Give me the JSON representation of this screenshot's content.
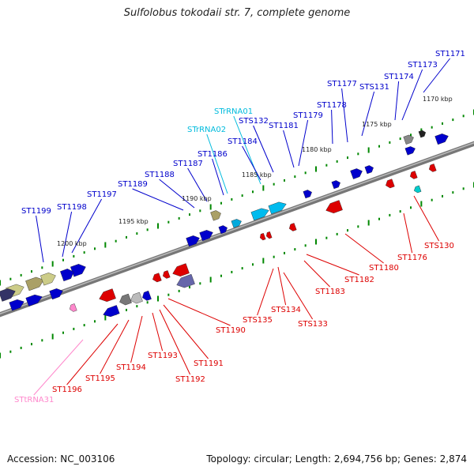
{
  "title": "Sulfolobus tokodaii str. 7, complete genome",
  "footer": {
    "accession": "Accession: NC_003106",
    "topology": "Topology: circular; Length: 2,694,756 bp; Genes: 2,874"
  },
  "colors": {
    "forward_gene": "#0000cc",
    "forward_rna": "#00bbdd",
    "reverse_gene": "#dd0000",
    "reverse_rna": "#ff88cc",
    "backbone": "#888888",
    "tick": "#008800"
  },
  "scale_labels": [
    "1170 kbp",
    "1175 kbp",
    "1180 kbp",
    "1185 kbp",
    "1190 kbp",
    "1195 kbp",
    "1200 kbp"
  ],
  "forward_labels": [
    "ST1171",
    "ST1173",
    "ST1174",
    "STS131",
    "ST1177",
    "ST1178",
    "ST1179",
    "ST1181",
    "STS132",
    "STrRNA01",
    "STrRNA02",
    "ST1184",
    "ST1186",
    "ST1187",
    "ST1188",
    "ST1189",
    "ST1197",
    "ST1198",
    "ST1199"
  ],
  "reverse_labels": [
    "STS130",
    "ST1176",
    "ST1180",
    "ST1182",
    "ST1183",
    "STS133",
    "STS134",
    "STS135",
    "ST1190",
    "ST1191",
    "ST1192",
    "ST1193",
    "ST1194",
    "ST1195",
    "ST1196",
    "STtRNA31"
  ]
}
